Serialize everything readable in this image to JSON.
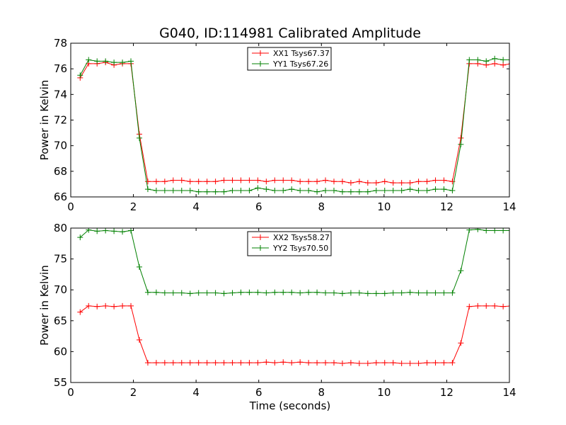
{
  "figure": {
    "title": "G040, ID:114981 Calibrated Amplitude",
    "xlabel": "Time (seconds)"
  },
  "chart_data": [
    {
      "type": "line",
      "title": "G040, ID:114981 Calibrated Amplitude",
      "xlabel": "",
      "ylabel": "Power in Kelvin",
      "xlim": [
        0,
        14
      ],
      "ylim": [
        66,
        78
      ],
      "xticks": [
        0,
        2,
        4,
        6,
        8,
        10,
        12,
        14
      ],
      "yticks": [
        66,
        68,
        70,
        72,
        74,
        76,
        78
      ],
      "grid": false,
      "legend": "upper-center",
      "x": [
        0.3,
        0.57,
        0.84,
        1.11,
        1.38,
        1.65,
        1.92,
        2.19,
        2.46,
        2.73,
        3.0,
        3.27,
        3.54,
        3.81,
        4.08,
        4.35,
        4.62,
        4.89,
        5.16,
        5.43,
        5.7,
        5.97,
        6.24,
        6.51,
        6.78,
        7.05,
        7.32,
        7.59,
        7.86,
        8.13,
        8.4,
        8.67,
        8.94,
        9.21,
        9.48,
        9.75,
        10.02,
        10.29,
        10.56,
        10.83,
        11.1,
        11.37,
        11.64,
        11.91,
        12.18,
        12.45,
        12.72,
        12.99,
        13.26,
        13.53,
        13.8,
        14.07
      ],
      "series": [
        {
          "name": "XX1 Tsys67.37",
          "color": "#ff0000",
          "values": [
            75.3,
            76.4,
            76.4,
            76.5,
            76.3,
            76.4,
            76.4,
            70.9,
            67.2,
            67.2,
            67.2,
            67.3,
            67.3,
            67.2,
            67.2,
            67.2,
            67.2,
            67.3,
            67.3,
            67.3,
            67.3,
            67.3,
            67.2,
            67.3,
            67.3,
            67.3,
            67.2,
            67.2,
            67.2,
            67.3,
            67.2,
            67.2,
            67.1,
            67.2,
            67.1,
            67.1,
            67.2,
            67.1,
            67.1,
            67.1,
            67.2,
            67.2,
            67.3,
            67.3,
            67.2,
            70.6,
            76.4,
            76.4,
            76.3,
            76.4,
            76.3,
            76.4
          ]
        },
        {
          "name": "YY1 Tsys67.26",
          "color": "#008000",
          "values": [
            75.5,
            76.7,
            76.6,
            76.6,
            76.5,
            76.5,
            76.6,
            70.6,
            66.6,
            66.5,
            66.5,
            66.5,
            66.5,
            66.5,
            66.4,
            66.4,
            66.4,
            66.4,
            66.5,
            66.5,
            66.5,
            66.7,
            66.6,
            66.5,
            66.5,
            66.6,
            66.5,
            66.5,
            66.4,
            66.5,
            66.5,
            66.4,
            66.4,
            66.4,
            66.4,
            66.5,
            66.5,
            66.5,
            66.5,
            66.6,
            66.5,
            66.5,
            66.6,
            66.6,
            66.5,
            70.1,
            76.7,
            76.7,
            76.6,
            76.8,
            76.7,
            76.7
          ]
        }
      ]
    },
    {
      "type": "line",
      "title": "",
      "xlabel": "Time (seconds)",
      "ylabel": "Power in Kelvin",
      "xlim": [
        0,
        14
      ],
      "ylim": [
        55,
        80
      ],
      "xticks": [
        0,
        2,
        4,
        6,
        8,
        10,
        12,
        14
      ],
      "yticks": [
        55,
        60,
        65,
        70,
        75,
        80
      ],
      "grid": false,
      "legend": "upper-center",
      "x": [
        0.3,
        0.57,
        0.84,
        1.11,
        1.38,
        1.65,
        1.92,
        2.19,
        2.46,
        2.73,
        3.0,
        3.27,
        3.54,
        3.81,
        4.08,
        4.35,
        4.62,
        4.89,
        5.16,
        5.43,
        5.7,
        5.97,
        6.24,
        6.51,
        6.78,
        7.05,
        7.32,
        7.59,
        7.86,
        8.13,
        8.4,
        8.67,
        8.94,
        9.21,
        9.48,
        9.75,
        10.02,
        10.29,
        10.56,
        10.83,
        11.1,
        11.37,
        11.64,
        11.91,
        12.18,
        12.45,
        12.72,
        12.99,
        13.26,
        13.53,
        13.8,
        14.07
      ],
      "series": [
        {
          "name": "XX2 Tsys58.27",
          "color": "#ff0000",
          "values": [
            66.4,
            67.4,
            67.3,
            67.4,
            67.3,
            67.4,
            67.4,
            61.9,
            58.2,
            58.2,
            58.2,
            58.2,
            58.2,
            58.2,
            58.2,
            58.2,
            58.2,
            58.2,
            58.2,
            58.2,
            58.2,
            58.2,
            58.3,
            58.2,
            58.3,
            58.2,
            58.3,
            58.2,
            58.2,
            58.2,
            58.2,
            58.1,
            58.2,
            58.1,
            58.1,
            58.2,
            58.2,
            58.2,
            58.1,
            58.1,
            58.1,
            58.2,
            58.2,
            58.2,
            58.2,
            61.4,
            67.3,
            67.4,
            67.4,
            67.4,
            67.3,
            67.4
          ]
        },
        {
          "name": "YY2 Tsys70.50",
          "color": "#008000",
          "values": [
            78.5,
            79.7,
            79.5,
            79.6,
            79.5,
            79.4,
            79.6,
            73.7,
            69.6,
            69.6,
            69.5,
            69.5,
            69.5,
            69.4,
            69.5,
            69.5,
            69.5,
            69.4,
            69.5,
            69.6,
            69.6,
            69.6,
            69.5,
            69.6,
            69.6,
            69.6,
            69.5,
            69.6,
            69.6,
            69.5,
            69.5,
            69.4,
            69.5,
            69.5,
            69.4,
            69.4,
            69.4,
            69.5,
            69.5,
            69.6,
            69.5,
            69.5,
            69.5,
            69.5,
            69.5,
            73.1,
            79.7,
            79.8,
            79.6,
            79.6,
            79.6,
            79.6
          ]
        }
      ]
    }
  ]
}
